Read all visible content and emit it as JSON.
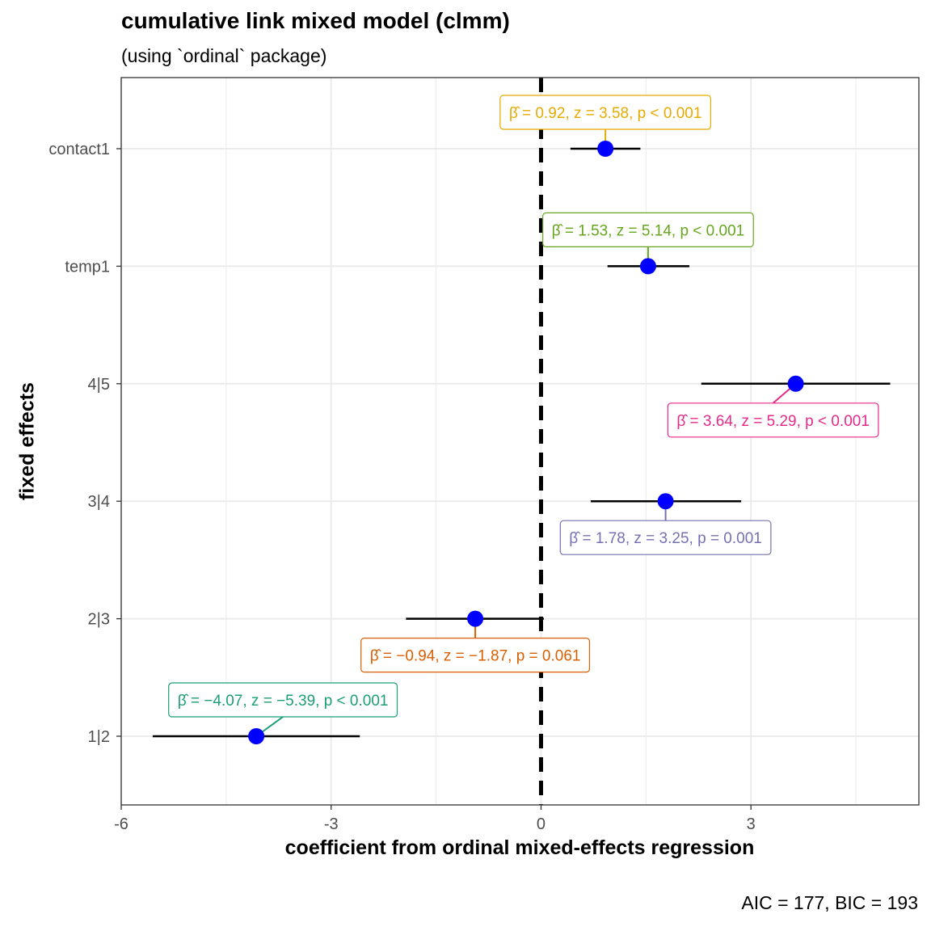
{
  "chart_data": {
    "type": "scatter",
    "title": "cumulative link mixed model (clmm)",
    "subtitle": "(using `ordinal` package)",
    "xlabel": "coefficient from ordinal mixed-effects regression",
    "ylabel": "fixed effects",
    "caption": "AIC = 177, BIC = 193",
    "xlim": [
      -6.0,
      5.4
    ],
    "x_ticks": [
      -6,
      -3,
      0,
      3
    ],
    "x_tick_labels": [
      "-6",
      "-3",
      "0",
      "3"
    ],
    "reference_line": 0,
    "point_color": "#0000ff",
    "grid": true,
    "terms": [
      {
        "term": "1|2",
        "estimate": -4.07,
        "conf_low": -5.55,
        "conf_high": -2.59,
        "color": "#1b9e77",
        "label": "β̂ = −4.07, z = −5.39, p < 0.001"
      },
      {
        "term": "2|3",
        "estimate": -0.94,
        "conf_low": -1.93,
        "conf_high": 0.04,
        "color": "#d95f02",
        "label": "β̂ = −0.94, z = −1.87, p = 0.061"
      },
      {
        "term": "3|4",
        "estimate": 1.78,
        "conf_low": 0.71,
        "conf_high": 2.86,
        "color": "#7570b3",
        "label": "β̂ = 1.78, z = 3.25, p = 0.001"
      },
      {
        "term": "4|5",
        "estimate": 3.64,
        "conf_low": 2.29,
        "conf_high": 4.99,
        "color": "#e7298a",
        "label": "β̂ = 3.64, z = 5.29, p < 0.001"
      },
      {
        "term": "temp1",
        "estimate": 1.53,
        "conf_low": 0.95,
        "conf_high": 2.12,
        "color": "#66a61e",
        "label": "β̂ = 1.53, z = 5.14, p < 0.001"
      },
      {
        "term": "contact1",
        "estimate": 0.92,
        "conf_low": 0.42,
        "conf_high": 1.42,
        "color": "#e6ab02",
        "label": "β̂ = 0.92, z = 3.58, p < 0.001"
      }
    ]
  }
}
